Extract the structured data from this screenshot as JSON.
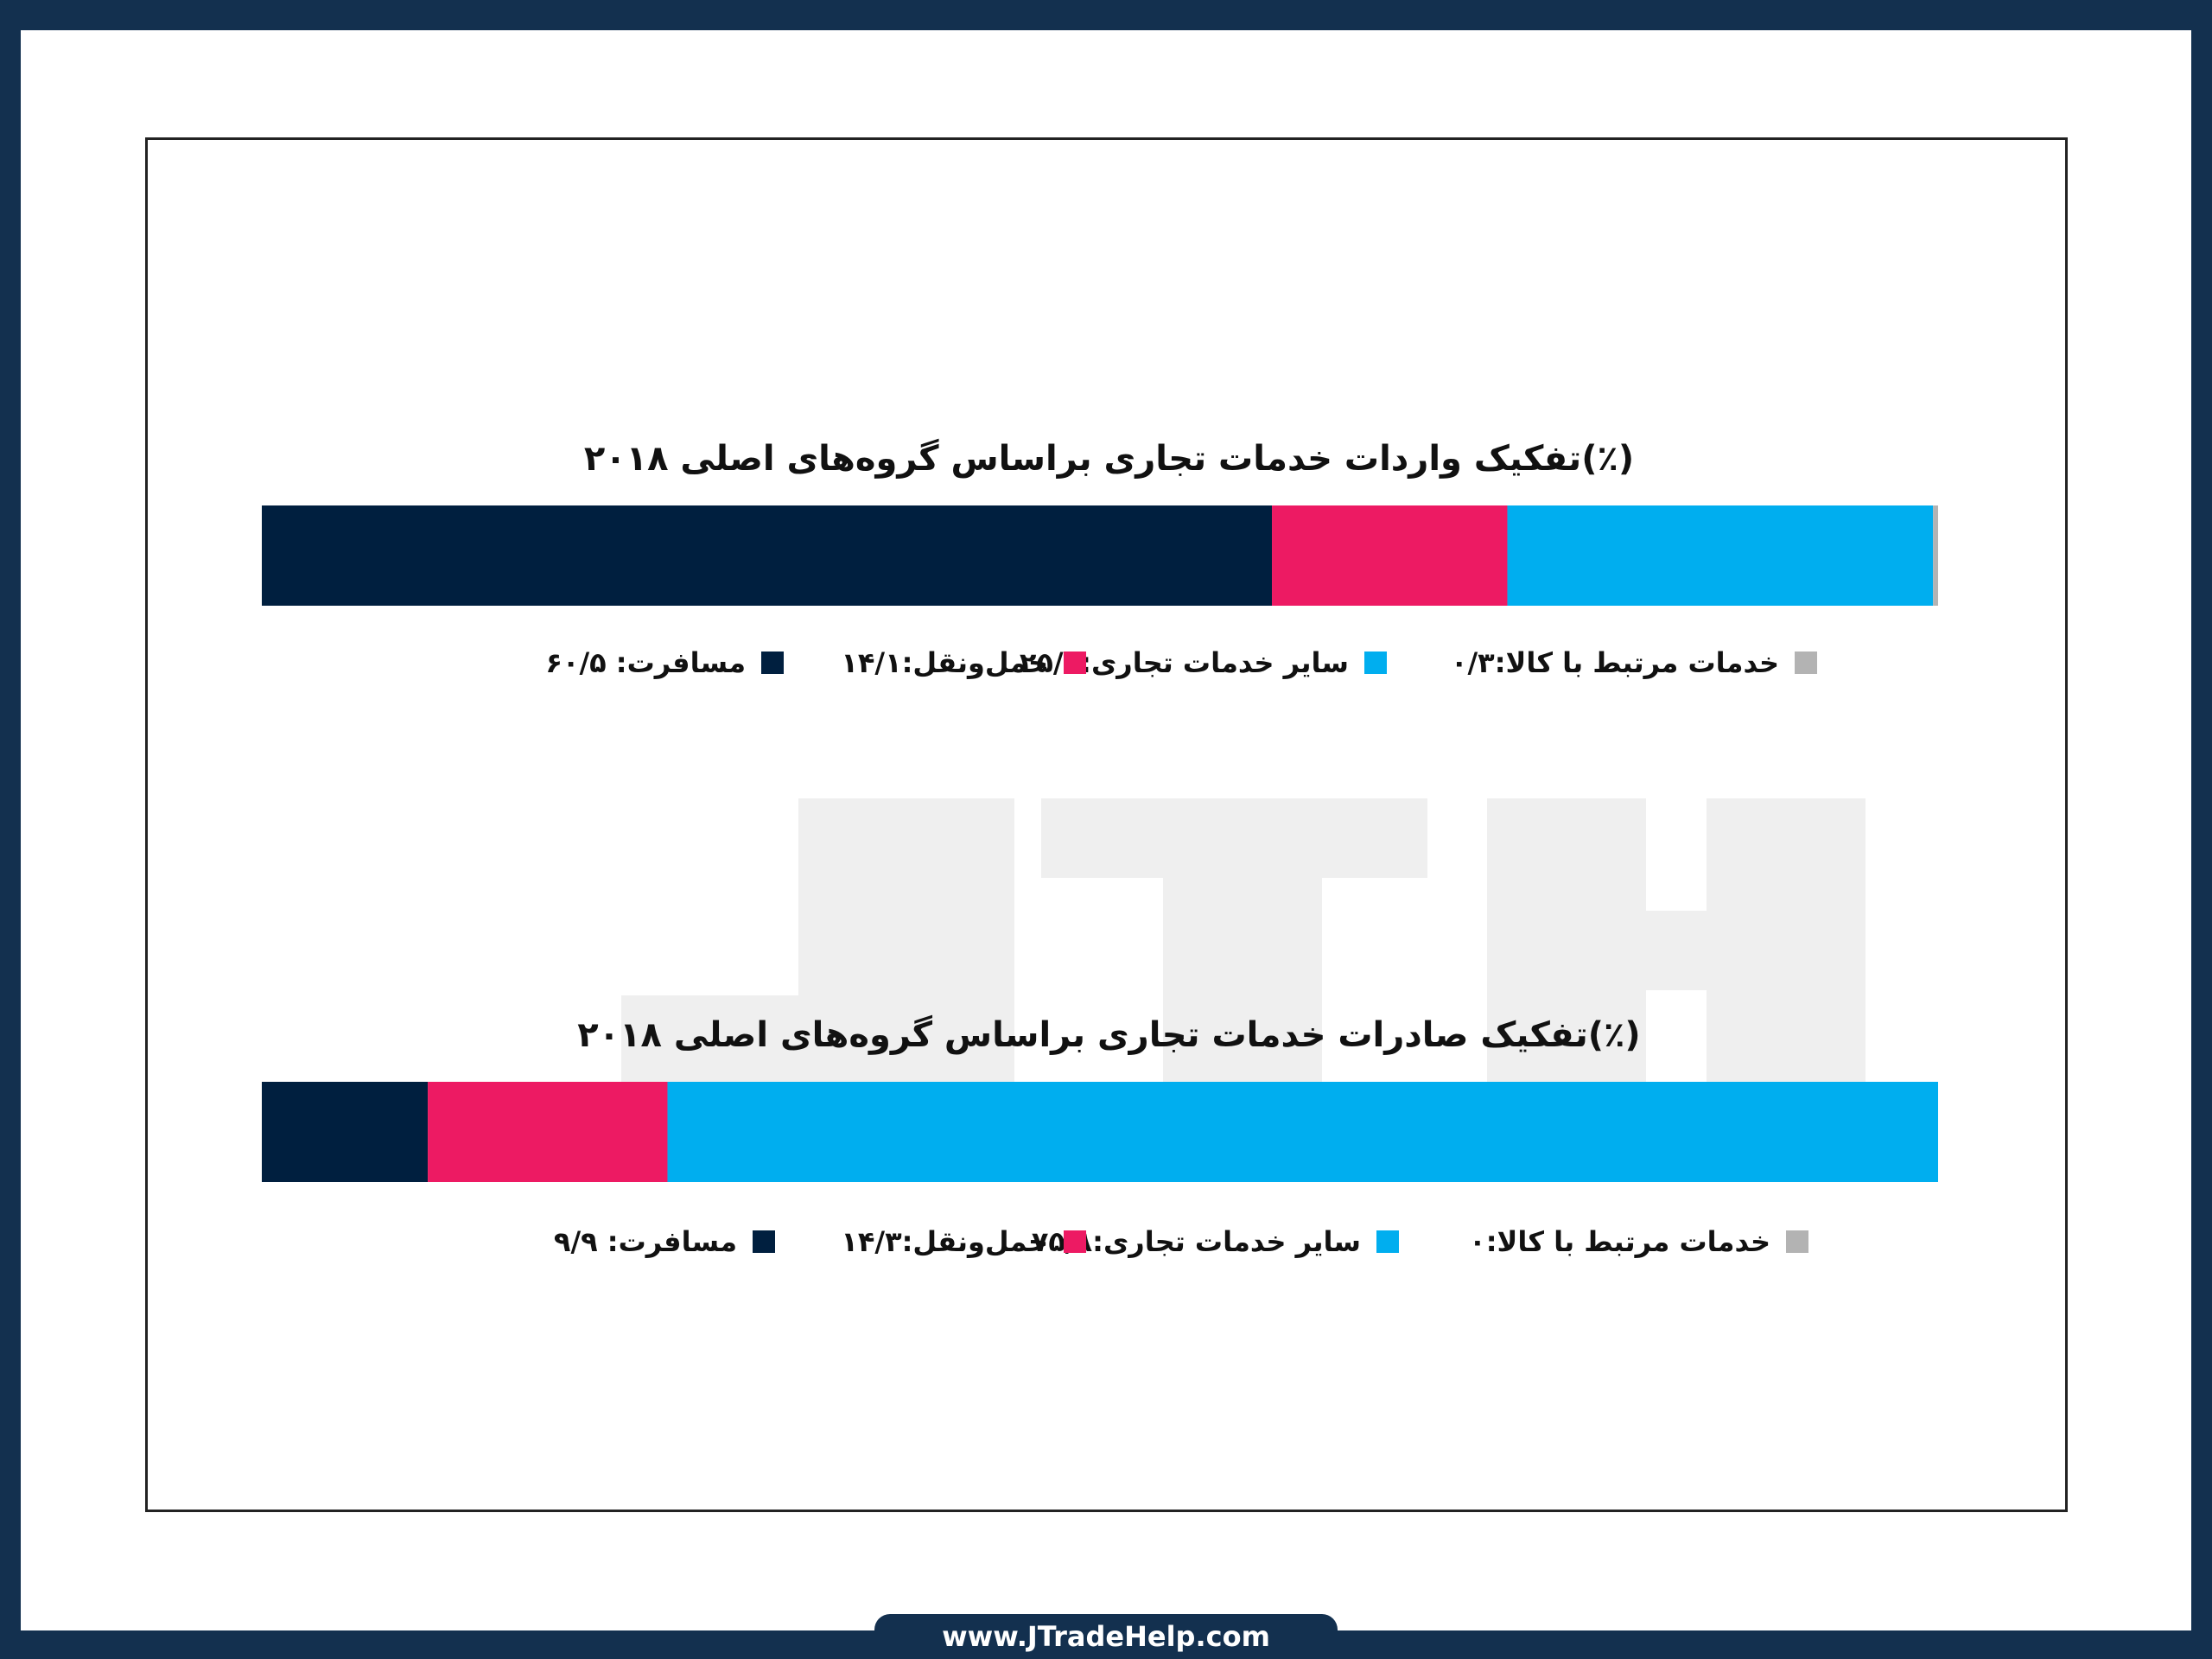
{
  "colors": {
    "page_border": "#13304f",
    "watermark": "#efefef",
    "segments": [
      "#001f3f",
      "#ed1a63",
      "#00aeef",
      "#b3b3b3"
    ]
  },
  "watermark_text": "JTH",
  "footer": {
    "url": "www.JTradeHelp.com"
  },
  "chart_data": [
    {
      "type": "bar",
      "orientation": "horizontal-stacked",
      "title": "تفکیک واردات خدمات تجاری براساس گروه‌های اصلی ۲۰۱۸(٪)",
      "categories": [
        "مسافرت",
        "حمل‌ونقل",
        "سایر خدمات تجاری",
        "خدمات مرتبط با کالا"
      ],
      "values": [
        60.5,
        14.1,
        25.5,
        0.3
      ],
      "xlim": [
        0,
        100.4
      ],
      "legend": [
        "مسافرت: ۶۰/۵",
        "حمل‌ونقل:۱۴/۱",
        "سایر خدمات تجاری:۲۵/۵",
        "خدمات مرتبط با کالا:۰/۳"
      ],
      "legend_position": "bottom"
    },
    {
      "type": "bar",
      "orientation": "horizontal-stacked",
      "title": "تفکیک صادرات خدمات تجاری براساس گروه‌های اصلی ۲۰۱۸(٪)",
      "categories": [
        "مسافرت",
        "حمل‌ونقل",
        "سایر خدمات تجاری",
        "خدمات مرتبط با کالا"
      ],
      "values": [
        9.9,
        14.3,
        75.8,
        0
      ],
      "xlim": [
        0,
        100
      ],
      "legend": [
        "مسافرت: ۹/۹",
        "حمل‌ونقل:۱۴/۳",
        "سایر خدمات تجاری:۷۵/۸",
        "خدمات مرتبط با کالا:۰"
      ],
      "legend_position": "bottom"
    }
  ]
}
